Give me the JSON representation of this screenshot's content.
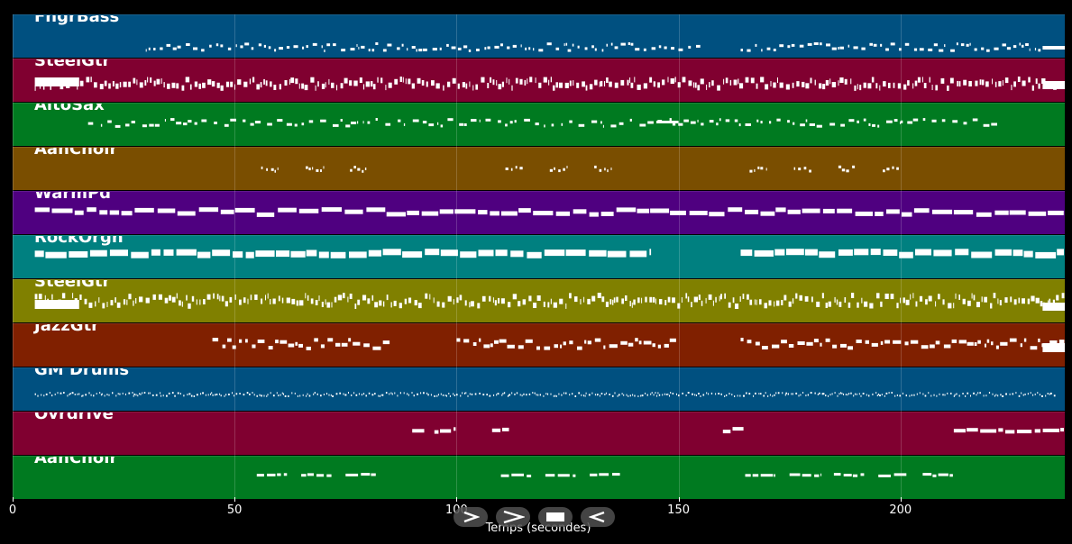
{
  "xaxis": {
    "label": "Temps (secondes)",
    "range": [
      0,
      237
    ],
    "ticks": [
      0,
      50,
      100,
      150,
      200
    ]
  },
  "tracks": [
    {
      "name": "FngrBass",
      "color": "#005080"
    },
    {
      "name": "SteelGtr",
      "color": "#800030"
    },
    {
      "name": "AltoSax",
      "color": "#007A20"
    },
    {
      "name": "AahChoir",
      "color": "#7A4E00"
    },
    {
      "name": "WarmPd",
      "color": "#4F0080"
    },
    {
      "name": "RockOrgn",
      "color": "#008080"
    },
    {
      "name": "SteelGtr",
      "color": "#808000"
    },
    {
      "name": "JazzGtr",
      "color": "#802000"
    },
    {
      "name": "GM Drums",
      "color": "#005080"
    },
    {
      "name": "Ovrdrive",
      "color": "#800030"
    },
    {
      "name": "AahChoir",
      "color": "#007A20"
    }
  ],
  "controls": [
    {
      "icon": "play-icon",
      "action": "play"
    },
    {
      "icon": "fast-forward-icon",
      "action": "forward"
    },
    {
      "icon": "stop-icon",
      "action": "stop"
    },
    {
      "icon": "rewind-icon",
      "action": "rewind"
    }
  ]
}
